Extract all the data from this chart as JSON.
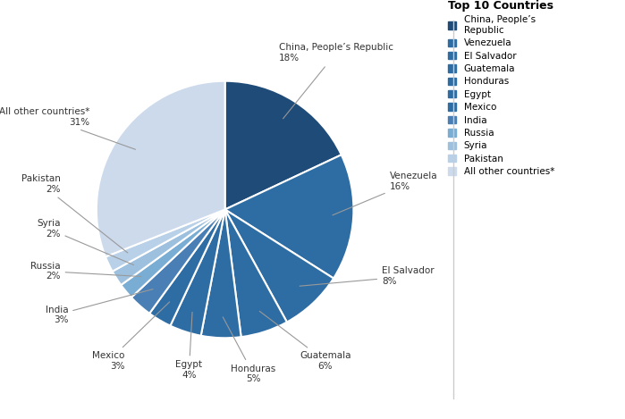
{
  "title": "Top 10 Countries",
  "labels": [
    "China, People’s Republic",
    "Venezuela",
    "El Salvador",
    "Guatemala",
    "Honduras",
    "Egypt",
    "Mexico",
    "India",
    "Russia",
    "Syria",
    "Pakistan",
    "All other countries*"
  ],
  "values": [
    18,
    16,
    8,
    6,
    5,
    4,
    3,
    3,
    2,
    2,
    2,
    31
  ],
  "colors": [
    "#1e4b78",
    "#2e6da4",
    "#2e6da4",
    "#2e6da4",
    "#2e6da4",
    "#2e6da4",
    "#2e6da4",
    "#4a7fb5",
    "#7aadd4",
    "#9ec0df",
    "#b8d0e8",
    "#ccdaec"
  ],
  "legend_colors": [
    "#1e4b78",
    "#2e6da4",
    "#2e6da4",
    "#2e6da4",
    "#2e6da4",
    "#2e6da4",
    "#2e6da4",
    "#4a7fb5",
    "#7aadd4",
    "#9ec0df",
    "#b8d0e8",
    "#ccdaec"
  ],
  "legend_labels": [
    "China, People’s\nRepublic",
    "Venezuela",
    "El Salvador",
    "Guatemala",
    "Honduras",
    "Egypt",
    "Mexico",
    "India",
    "Russia",
    "Syria",
    "Pakistan",
    "All other countries*"
  ],
  "background_color": "#ffffff",
  "label_positions": [
    [
      0.42,
      1.22,
      "left",
      "center"
    ],
    [
      1.28,
      0.22,
      "left",
      "center"
    ],
    [
      1.22,
      -0.52,
      "left",
      "center"
    ],
    [
      0.78,
      -1.18,
      "center",
      "top"
    ],
    [
      0.22,
      -1.28,
      "center",
      "top"
    ],
    [
      -0.28,
      -1.25,
      "center",
      "top"
    ],
    [
      -0.78,
      -1.18,
      "right",
      "top"
    ],
    [
      -1.22,
      -0.82,
      "right",
      "center"
    ],
    [
      -1.28,
      -0.48,
      "right",
      "center"
    ],
    [
      -1.28,
      -0.15,
      "right",
      "center"
    ],
    [
      -1.28,
      0.2,
      "right",
      "center"
    ],
    [
      -1.05,
      0.72,
      "right",
      "center"
    ]
  ]
}
